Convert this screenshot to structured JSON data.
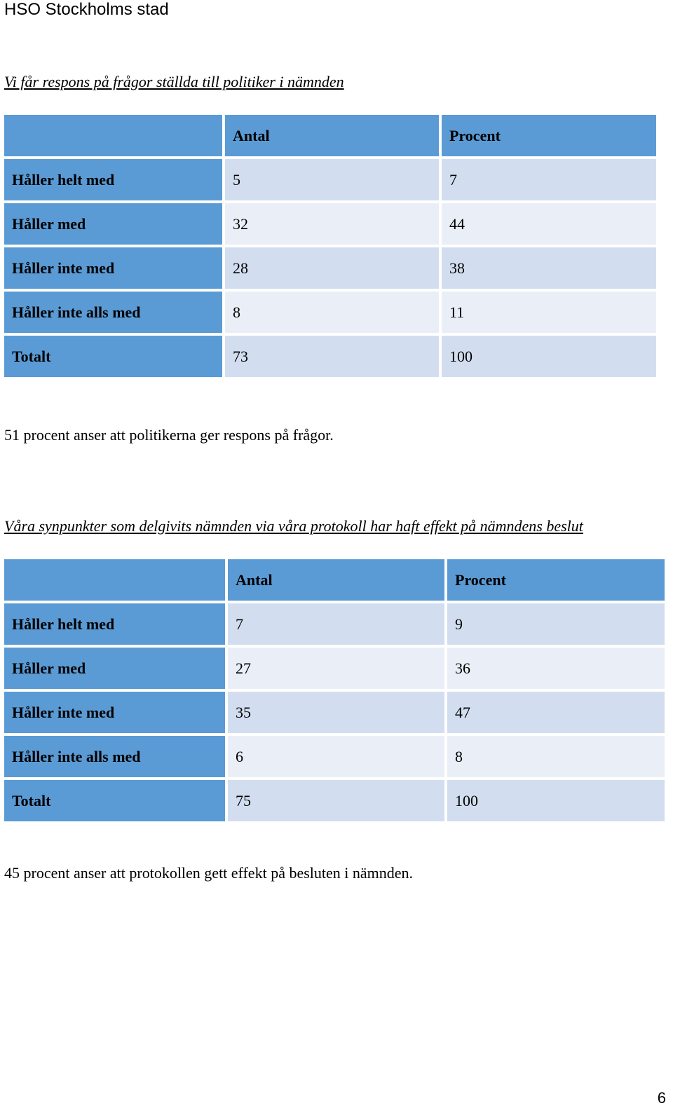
{
  "header": {
    "title": "HSO Stockholms stad"
  },
  "table1": {
    "title": "Vi får respons på frågor ställda till politiker i nämnden",
    "columns": [
      "",
      "Antal",
      "Procent"
    ],
    "rows": [
      {
        "label": "Håller helt med",
        "antal": "5",
        "procent": "7"
      },
      {
        "label": "Håller med",
        "antal": "32",
        "procent": "44"
      },
      {
        "label": "Håller inte med",
        "antal": "28",
        "procent": "38"
      },
      {
        "label": "Håller inte alls med",
        "antal": "8",
        "procent": "11"
      },
      {
        "label": "Totalt",
        "antal": "73",
        "procent": "100"
      }
    ],
    "summary": "51 procent anser att politikerna ger respons på frågor."
  },
  "table2": {
    "title": "Våra synpunkter som delgivits nämnden via våra protokoll har haft effekt på nämndens beslut",
    "columns": [
      "",
      "Antal",
      "Procent"
    ],
    "rows": [
      {
        "label": "Håller helt med",
        "antal": "7",
        "procent": "9"
      },
      {
        "label": "Håller med",
        "antal": "27",
        "procent": "36"
      },
      {
        "label": "Håller inte med",
        "antal": "35",
        "procent": "47"
      },
      {
        "label": "Håller inte alls med",
        "antal": "6",
        "procent": "8"
      },
      {
        "label": "Totalt",
        "antal": "75",
        "procent": "100"
      }
    ],
    "summary": "45 procent anser att protokollen gett effekt på besluten i nämnden."
  },
  "footer": {
    "page_number": "6"
  },
  "colors": {
    "header_fill": "#5b9bd5",
    "row_band_dark": "#d2deef",
    "row_band_light": "#eaeff7"
  }
}
